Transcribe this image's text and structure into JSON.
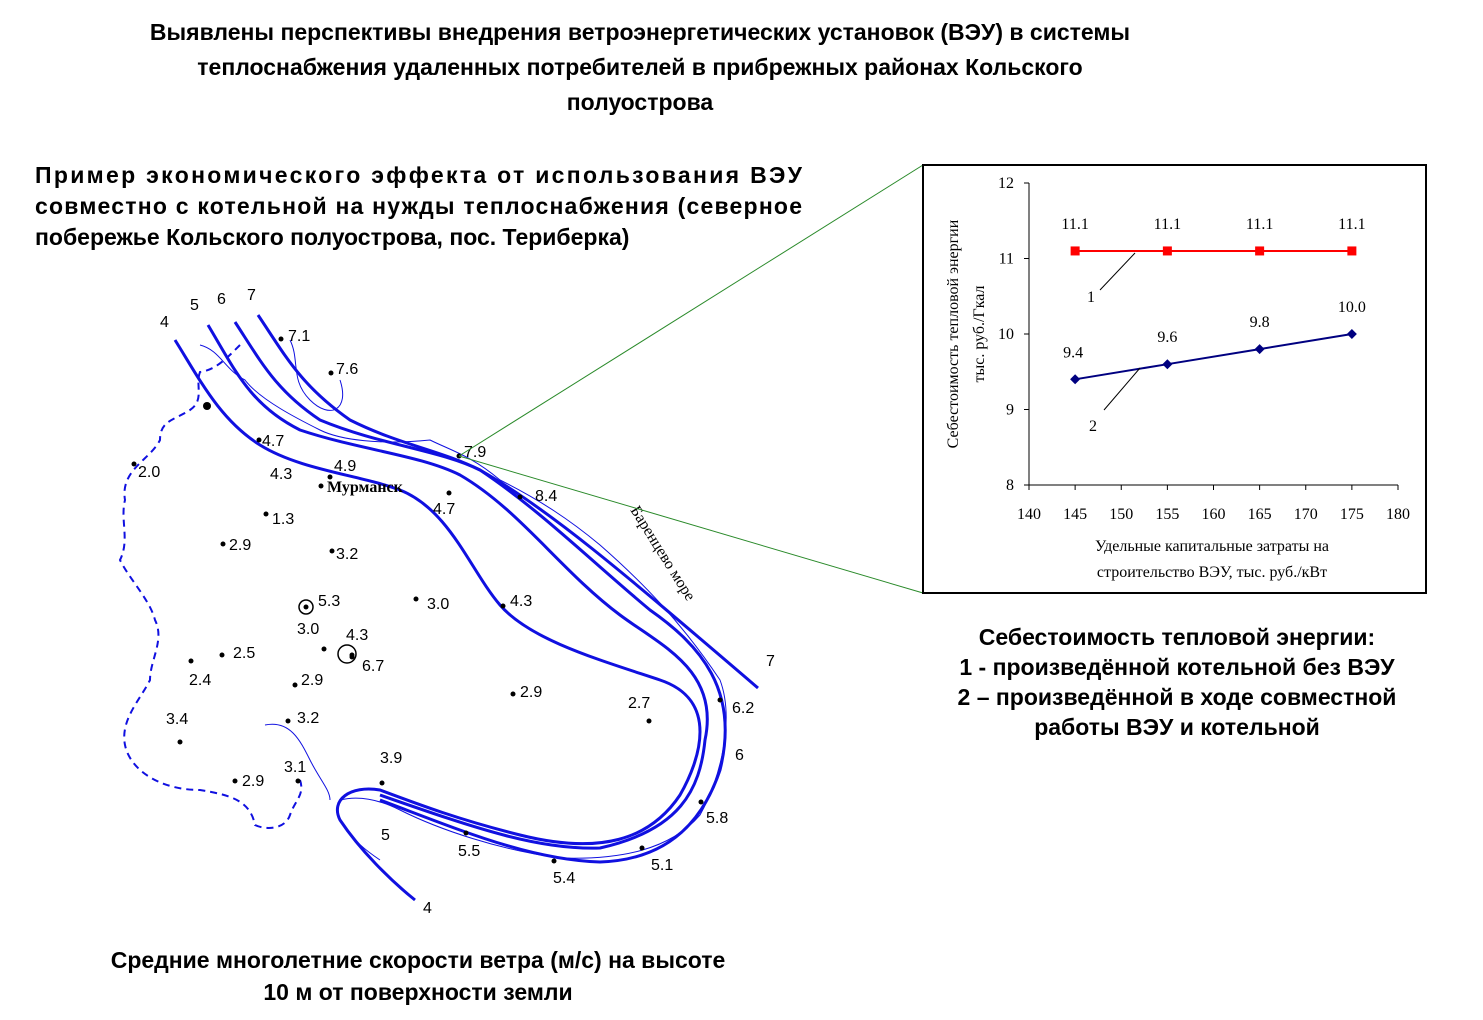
{
  "title": [
    "Выявлены перспективы внедрения ветроэнергетических установок (ВЭУ) в системы",
    "теплоснабжения удаленных потребителей в прибрежных районах Кольского",
    "полуострова"
  ],
  "subtitle": [
    "Пример экономического эффекта от использования ВЭУ",
    "совместно с котельной на нужды теплоснабжения (северное",
    "побережье Кольского полуострова, пос. Териберка)"
  ],
  "map": {
    "stations": [
      "7.1",
      "7.6",
      "4.7",
      "4.9",
      "4.3",
      "7.9",
      "8.4",
      "4.7",
      "2.0",
      "1.3",
      "2.9",
      "3.2",
      "3.0",
      "4.3",
      "5.3",
      "3.0",
      "4.3",
      "6.7",
      "2.5",
      "2.4",
      "2.9",
      "2.9",
      "2.7",
      "6.2",
      "3.4",
      "3.2",
      "3.9",
      "3.1",
      "2.9",
      "5.8",
      "5.5",
      "5.1",
      "5.4"
    ],
    "isoline_labels": [
      "4",
      "5",
      "6",
      "7",
      "7",
      "6",
      "5",
      "4"
    ],
    "city": "Мурманск",
    "sea": "Баренцево море",
    "caption": [
      "Средние многолетние скорости ветра (м/с) на высоте",
      "10 м от поверхности земли"
    ]
  },
  "chart_data": {
    "type": "line",
    "x": [
      145,
      155,
      165,
      175
    ],
    "series": [
      {
        "name": "1",
        "color": "#ff0000",
        "values": [
          11.1,
          11.1,
          11.1,
          11.1
        ]
      },
      {
        "name": "2",
        "color": "#000080",
        "values": [
          9.4,
          9.6,
          9.8,
          10.0
        ],
        "value_labels": [
          "9.4",
          "9.6",
          "9.8",
          "10.0"
        ]
      }
    ],
    "xlim": [
      140,
      180
    ],
    "xticks": [
      140,
      145,
      150,
      155,
      160,
      165,
      170,
      175,
      180
    ],
    "ylim": [
      8,
      12
    ],
    "yticks": [
      8,
      9,
      10,
      11,
      12
    ],
    "ylabel": [
      "Себестоимость тепловой энергии",
      "тыс. руб./Гкал"
    ],
    "xlabel": [
      "Удельные капитальные затраты на",
      "строительство ВЭУ, тыс. руб./кВт"
    ]
  },
  "chart_caption": [
    "Себестоимость тепловой энергии:",
    "1 - произведённой котельной без ВЭУ",
    "2 – произведённой в ходе совместной",
    "работы ВЭУ и котельной"
  ]
}
